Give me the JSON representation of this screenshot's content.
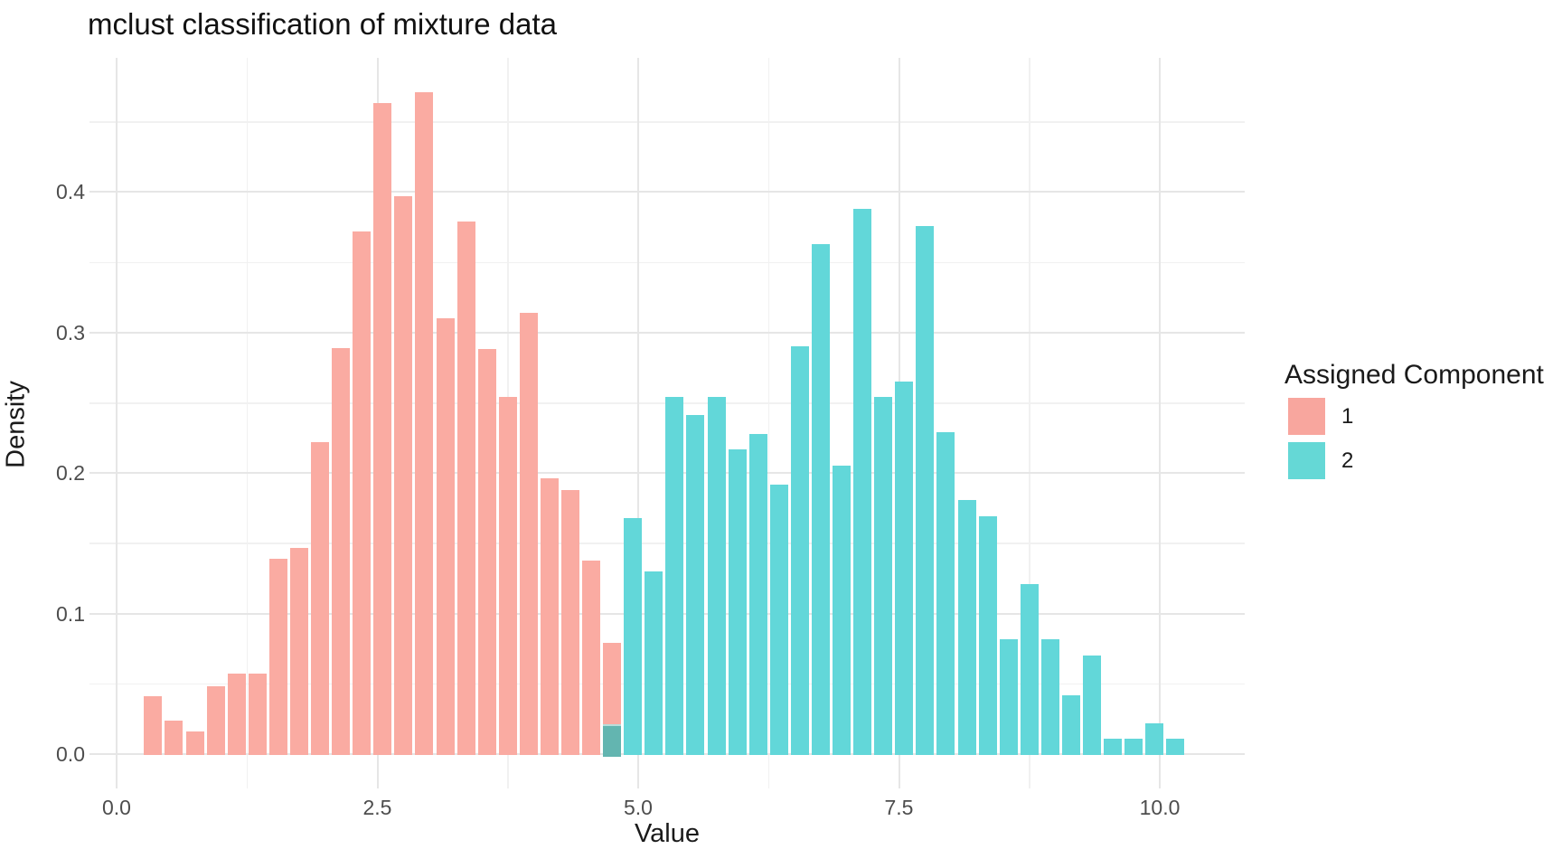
{
  "chart_data": {
    "type": "bar",
    "subtype": "overlaid-histogram",
    "title": "mclust classification of mixture data",
    "xlabel": "Value",
    "ylabel": "Density",
    "x_ticks": [
      {
        "value": 0,
        "label": "0.0"
      },
      {
        "value": 2.5,
        "label": "2.5"
      },
      {
        "value": 5,
        "label": "5.0"
      },
      {
        "value": 7.5,
        "label": "7.5"
      },
      {
        "value": 10,
        "label": "10.0"
      }
    ],
    "x_minor_ticks": [
      1.25,
      3.75,
      6.25,
      8.75
    ],
    "y_ticks": [
      {
        "value": 0,
        "label": "0.0"
      },
      {
        "value": 0.1,
        "label": "0.1"
      },
      {
        "value": 0.2,
        "label": "0.2"
      },
      {
        "value": 0.3,
        "label": "0.3"
      },
      {
        "value": 0.4,
        "label": "0.4"
      }
    ],
    "y_minor_ticks": [
      0.05,
      0.15,
      0.25,
      0.35,
      0.45
    ],
    "xlim": [
      -0.3,
      10.8
    ],
    "ylim": [
      0,
      0.495
    ],
    "grid": true,
    "binwidth": 0.2,
    "series": [
      {
        "name": "1",
        "color": "#FAABA2",
        "bars": [
          [
            0.35,
            0.041
          ],
          [
            0.55,
            0.024
          ],
          [
            0.75,
            0.016
          ],
          [
            0.95,
            0.048
          ],
          [
            1.15,
            0.057
          ],
          [
            1.35,
            0.057
          ],
          [
            1.55,
            0.139
          ],
          [
            1.75,
            0.147
          ],
          [
            1.95,
            0.222
          ],
          [
            2.15,
            0.289
          ],
          [
            2.35,
            0.372
          ],
          [
            2.55,
            0.463
          ],
          [
            2.75,
            0.397
          ],
          [
            2.95,
            0.471
          ],
          [
            3.15,
            0.31
          ],
          [
            3.35,
            0.379
          ],
          [
            3.55,
            0.288
          ],
          [
            3.75,
            0.254
          ],
          [
            3.95,
            0.314
          ],
          [
            4.15,
            0.196
          ],
          [
            4.35,
            0.188
          ],
          [
            4.55,
            0.138
          ],
          [
            4.75,
            0.079
          ]
        ]
      },
      {
        "name": "2",
        "color": "#62D7D9",
        "bars": [
          [
            4.75,
            0.021
          ],
          [
            4.95,
            0.168
          ],
          [
            5.15,
            0.13
          ],
          [
            5.35,
            0.254
          ],
          [
            5.55,
            0.241
          ],
          [
            5.75,
            0.254
          ],
          [
            5.95,
            0.217
          ],
          [
            6.15,
            0.228
          ],
          [
            6.35,
            0.192
          ],
          [
            6.55,
            0.29
          ],
          [
            6.75,
            0.363
          ],
          [
            6.95,
            0.205
          ],
          [
            7.15,
            0.388
          ],
          [
            7.35,
            0.254
          ],
          [
            7.55,
            0.265
          ],
          [
            7.75,
            0.376
          ],
          [
            7.95,
            0.229
          ],
          [
            8.15,
            0.181
          ],
          [
            8.35,
            0.169
          ],
          [
            8.55,
            0.082
          ],
          [
            8.75,
            0.121
          ],
          [
            8.95,
            0.082
          ],
          [
            9.15,
            0.042
          ],
          [
            9.35,
            0.07
          ],
          [
            9.55,
            0.011
          ],
          [
            9.75,
            0.011
          ],
          [
            9.95,
            0.022
          ],
          [
            10.15,
            0.011
          ]
        ]
      }
    ],
    "overlap_bins": [
      4.75
    ],
    "overlap_color": "#63B5B0",
    "legend": {
      "title": "Assigned Component",
      "position": "right",
      "items": [
        {
          "label": "1",
          "color": "#F8A69E"
        },
        {
          "label": "2",
          "color": "#65D8D6"
        }
      ]
    },
    "colors": {
      "background": "#ffffff",
      "grid_major": "#e6e6e6",
      "grid_minor": "#f1f1f1",
      "tick_text": "#4d4d4d",
      "title_text": "#111111"
    }
  }
}
